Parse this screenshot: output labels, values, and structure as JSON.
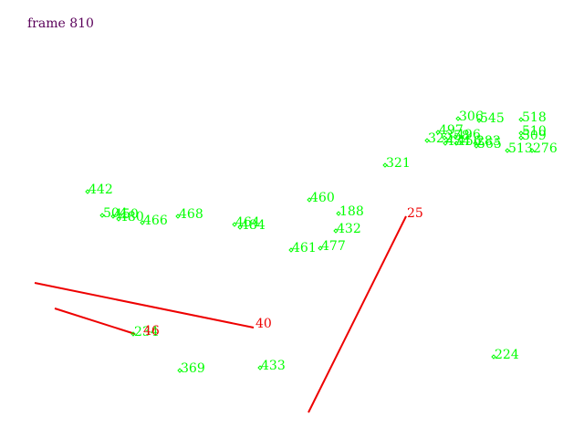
{
  "title": "frame 810",
  "colors": {
    "title": "#5a005a",
    "green": "#00ff00",
    "red": "#ee0000",
    "background": "#ffffff"
  },
  "green_labels": [
    "442",
    "504",
    "450",
    "480",
    "466",
    "468",
    "464",
    "484",
    "460",
    "188",
    "432",
    "461",
    "477",
    "321",
    "497",
    "322",
    "358",
    "496",
    "434",
    "456",
    "565",
    "513",
    "276",
    "306",
    "518",
    "545",
    "509",
    "510",
    "283",
    "224",
    "433",
    "369",
    "234"
  ],
  "red_labels": [
    "25",
    "40",
    "46"
  ]
}
